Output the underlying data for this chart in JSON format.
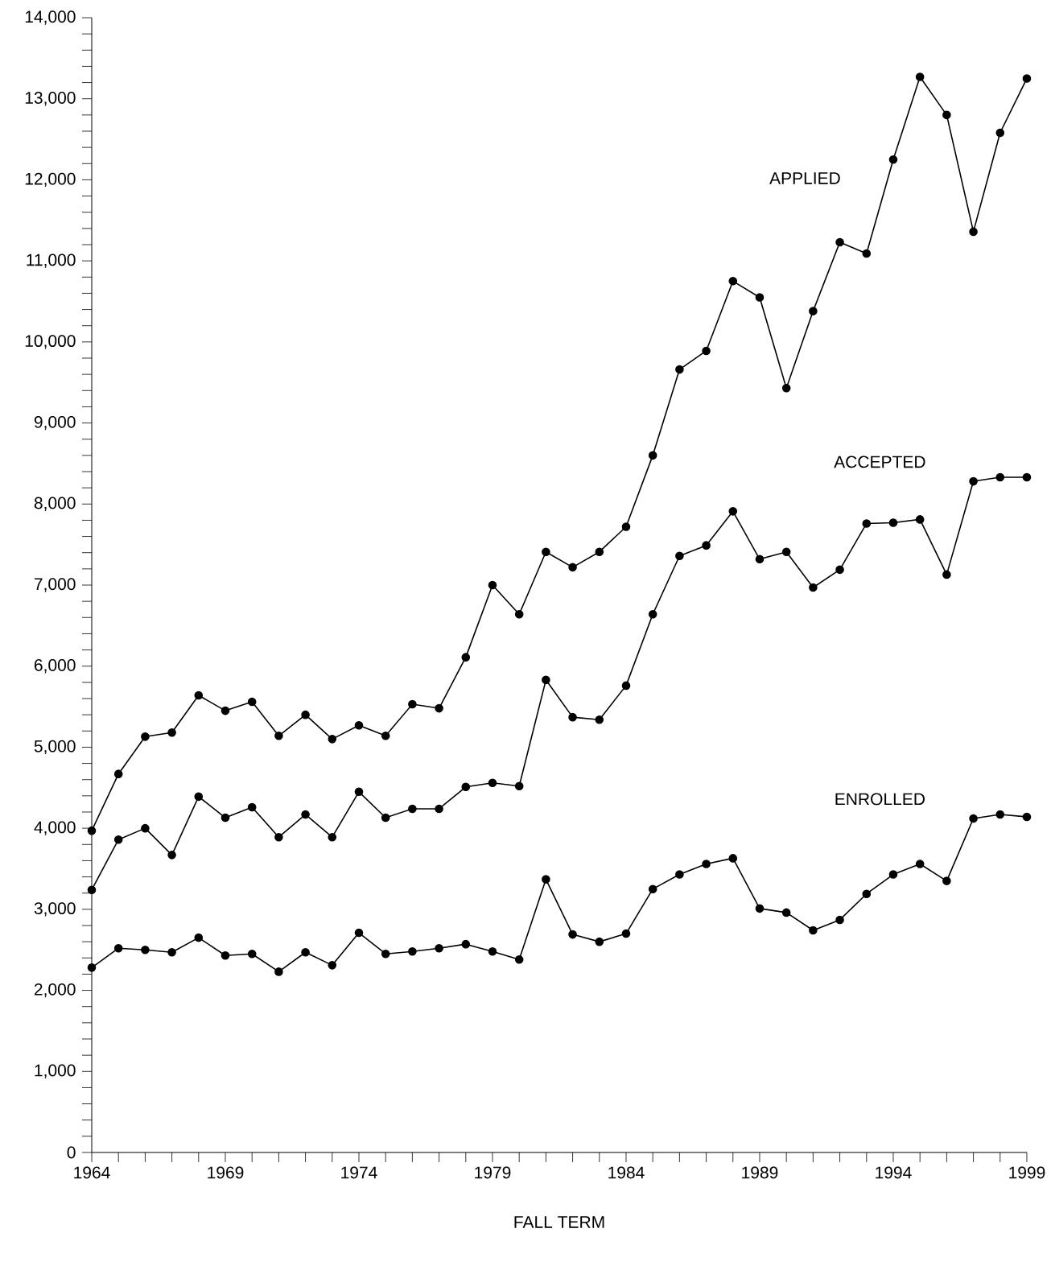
{
  "chart_data": {
    "type": "line",
    "xlabel": "FALL TERM",
    "marker": "circle",
    "line_style": "solid",
    "xlim": [
      1964,
      1999
    ],
    "ylim": [
      0,
      14000
    ],
    "x": [
      1964,
      1965,
      1966,
      1967,
      1968,
      1969,
      1970,
      1971,
      1972,
      1973,
      1974,
      1975,
      1976,
      1977,
      1978,
      1979,
      1980,
      1981,
      1982,
      1983,
      1984,
      1985,
      1986,
      1987,
      1988,
      1989,
      1990,
      1991,
      1992,
      1993,
      1994,
      1995,
      1996,
      1997,
      1998,
      1999
    ],
    "xticks": [
      1964,
      {
        "value": 1965,
        "label": null
      },
      {
        "value": 1966,
        "label": null
      },
      {
        "value": 1967,
        "label": null
      },
      {
        "value": 1968,
        "label": null
      },
      1969,
      {
        "value": 1970,
        "label": null
      },
      {
        "value": 1971,
        "label": null
      },
      {
        "value": 1972,
        "label": null
      },
      {
        "value": 1973,
        "label": null
      },
      1974,
      {
        "value": 1975,
        "label": null
      },
      {
        "value": 1976,
        "label": null
      },
      {
        "value": 1977,
        "label": null
      },
      {
        "value": 1978,
        "label": null
      },
      1979,
      {
        "value": 1980,
        "label": null
      },
      {
        "value": 1981,
        "label": null
      },
      {
        "value": 1982,
        "label": null
      },
      {
        "value": 1983,
        "label": null
      },
      1984,
      {
        "value": 1985,
        "label": null
      },
      {
        "value": 1986,
        "label": null
      },
      {
        "value": 1987,
        "label": null
      },
      {
        "value": 1988,
        "label": null
      },
      1989,
      {
        "value": 1990,
        "label": null
      },
      {
        "value": 1991,
        "label": null
      },
      {
        "value": 1992,
        "label": null
      },
      {
        "value": 1993,
        "label": null
      },
      1994,
      {
        "value": 1995,
        "label": null
      },
      {
        "value": 1996,
        "label": null
      },
      {
        "value": 1997,
        "label": null
      },
      {
        "value": 1998,
        "label": null
      },
      1999
    ],
    "yticks": [
      0,
      {
        "value": 200,
        "label": null
      },
      {
        "value": 400,
        "label": null
      },
      {
        "value": 600,
        "label": null
      },
      {
        "value": 800,
        "label": null
      },
      {
        "value": 1000,
        "label": "1,000"
      },
      {
        "value": 1200,
        "label": null
      },
      {
        "value": 1400,
        "label": null
      },
      {
        "value": 1600,
        "label": null
      },
      {
        "value": 1800,
        "label": null
      },
      {
        "value": 2000,
        "label": "2,000"
      },
      {
        "value": 2200,
        "label": null
      },
      {
        "value": 2400,
        "label": null
      },
      {
        "value": 2600,
        "label": null
      },
      {
        "value": 2800,
        "label": null
      },
      {
        "value": 3000,
        "label": "3,000"
      },
      {
        "value": 3200,
        "label": null
      },
      {
        "value": 3400,
        "label": null
      },
      {
        "value": 3600,
        "label": null
      },
      {
        "value": 3800,
        "label": null
      },
      {
        "value": 4000,
        "label": "4,000"
      },
      {
        "value": 4200,
        "label": null
      },
      {
        "value": 4400,
        "label": null
      },
      {
        "value": 4600,
        "label": null
      },
      {
        "value": 4800,
        "label": null
      },
      {
        "value": 5000,
        "label": "5,000"
      },
      {
        "value": 5200,
        "label": null
      },
      {
        "value": 5400,
        "label": null
      },
      {
        "value": 5600,
        "label": null
      },
      {
        "value": 5800,
        "label": null
      },
      {
        "value": 6000,
        "label": "6,000"
      },
      {
        "value": 6200,
        "label": null
      },
      {
        "value": 6400,
        "label": null
      },
      {
        "value": 6600,
        "label": null
      },
      {
        "value": 6800,
        "label": null
      },
      {
        "value": 7000,
        "label": "7,000"
      },
      {
        "value": 7200,
        "label": null
      },
      {
        "value": 7400,
        "label": null
      },
      {
        "value": 7600,
        "label": null
      },
      {
        "value": 7800,
        "label": null
      },
      {
        "value": 8000,
        "label": "8,000"
      },
      {
        "value": 8200,
        "label": null
      },
      {
        "value": 8400,
        "label": null
      },
      {
        "value": 8600,
        "label": null
      },
      {
        "value": 8800,
        "label": null
      },
      {
        "value": 9000,
        "label": "9,000"
      },
      {
        "value": 9200,
        "label": null
      },
      {
        "value": 9400,
        "label": null
      },
      {
        "value": 9600,
        "label": null
      },
      {
        "value": 9800,
        "label": null
      },
      {
        "value": 10000,
        "label": "10,000"
      },
      {
        "value": 10200,
        "label": null
      },
      {
        "value": 10400,
        "label": null
      },
      {
        "value": 10600,
        "label": null
      },
      {
        "value": 10800,
        "label": null
      },
      {
        "value": 11000,
        "label": "11,000"
      },
      {
        "value": 11200,
        "label": null
      },
      {
        "value": 11400,
        "label": null
      },
      {
        "value": 11600,
        "label": null
      },
      {
        "value": 11800,
        "label": null
      },
      {
        "value": 12000,
        "label": "12,000"
      },
      {
        "value": 12200,
        "label": null
      },
      {
        "value": 12400,
        "label": null
      },
      {
        "value": 12600,
        "label": null
      },
      {
        "value": 12800,
        "label": null
      },
      {
        "value": 13000,
        "label": "13,000"
      },
      {
        "value": 13200,
        "label": null
      },
      {
        "value": 13400,
        "label": null
      },
      {
        "value": 13600,
        "label": null
      },
      {
        "value": 13800,
        "label": null
      },
      {
        "value": 14000,
        "label": "14,000"
      }
    ],
    "series": [
      {
        "name": "APPLIED",
        "color": "#000000",
        "values": [
          3970,
          4670,
          5130,
          5180,
          5640,
          5450,
          5560,
          5140,
          5400,
          5100,
          5270,
          5140,
          5530,
          5480,
          6110,
          7000,
          6640,
          7410,
          7220,
          7410,
          7720,
          8600,
          9660,
          9890,
          10750,
          10550,
          9430,
          10380,
          11230,
          11090,
          12250,
          13270,
          12800,
          11360,
          12580,
          13250
        ]
      },
      {
        "name": "ACCEPTED",
        "color": "#000000",
        "values": [
          3240,
          3860,
          4000,
          3670,
          4390,
          4130,
          4260,
          3890,
          4170,
          3890,
          4450,
          4130,
          4240,
          4240,
          4510,
          4560,
          4520,
          5830,
          5370,
          5340,
          5760,
          6640,
          7360,
          7490,
          7910,
          7320,
          7410,
          6970,
          7190,
          7760,
          7770,
          7810,
          7130,
          8280,
          8330,
          8330
        ]
      },
      {
        "name": "ENROLLED",
        "color": "#000000",
        "values": [
          2280,
          2520,
          2500,
          2470,
          2650,
          2430,
          2450,
          2230,
          2470,
          2310,
          2710,
          2450,
          2480,
          2520,
          2570,
          2480,
          2380,
          3370,
          2690,
          2600,
          2700,
          3250,
          3430,
          3560,
          3630,
          3010,
          2960,
          2740,
          2870,
          3190,
          3430,
          3560,
          3350,
          4120,
          4170,
          4140
        ]
      }
    ]
  }
}
